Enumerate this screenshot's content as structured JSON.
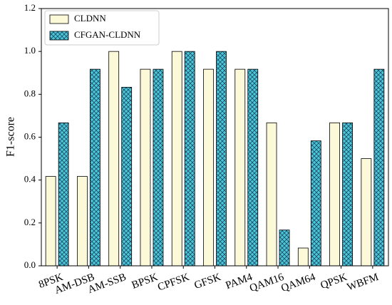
{
  "chart_data": {
    "type": "bar",
    "y_label": "F1-score",
    "categories": [
      "8PSK",
      "AM-DSB",
      "AM-SSB",
      "BPSK",
      "CPFSK",
      "GFSK",
      "PAM4",
      "QAM16",
      "QAM64",
      "QPSK",
      "WBFM"
    ],
    "series": [
      {
        "name": "CLDNN",
        "color": "#fcf9d8",
        "values": [
          0.417,
          0.417,
          1.0,
          0.917,
          1.0,
          0.917,
          0.917,
          0.667,
          0.083,
          0.667,
          0.5
        ]
      },
      {
        "name": "CFGAN-CLDNN",
        "color": "#4cc7d8",
        "values": [
          0.667,
          0.917,
          0.833,
          0.917,
          1.0,
          1.0,
          0.917,
          0.167,
          0.583,
          0.667,
          0.917
        ]
      }
    ],
    "ylim": [
      0,
      1.2
    ],
    "yticks": [
      {
        "value": 0,
        "label": "0.0"
      },
      0.2,
      0.4,
      0.6,
      0.8,
      {
        "value": 1,
        "label": "1.0"
      },
      1.2
    ],
    "legend": "upper left",
    "hatch": "crosshatch"
  }
}
